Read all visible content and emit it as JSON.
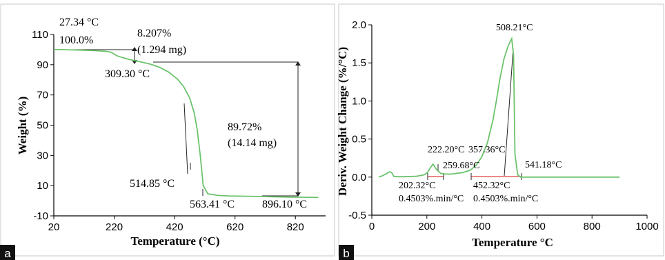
{
  "chart_data": [
    {
      "panel": "a",
      "type": "line",
      "xlabel": "Temperature (°C)",
      "ylabel": "Weight (%)",
      "xlim": [
        20,
        920
      ],
      "ylim": [
        -10,
        110
      ],
      "xticks": [
        20,
        220,
        420,
        620,
        820
      ],
      "yticks": [
        -10,
        10,
        30,
        50,
        70,
        90,
        110
      ],
      "x_tick_labels": [
        "20",
        "220",
        "420",
        "620",
        "820"
      ],
      "y_tick_labels": [
        "-10",
        "10",
        "30",
        "50",
        "70",
        "90",
        "110"
      ],
      "series": [
        {
          "color": "#6cc36c",
          "x": [
            20,
            40,
            80,
            120,
            160,
            190,
            210,
            230,
            250,
            270,
            290,
            309.3,
            340,
            370,
            400,
            430,
            450,
            470,
            485,
            495,
            505,
            514.85,
            530,
            563.41,
            600,
            650,
            700,
            750,
            800,
            850,
            896.1
          ],
          "y": [
            100.0,
            100.0,
            99.8,
            99.6,
            99.3,
            98.9,
            98.2,
            95.8,
            94.6,
            93.5,
            92.6,
            91.8,
            90.4,
            88.3,
            85.2,
            80.4,
            75.5,
            68.0,
            58.0,
            47.0,
            30.0,
            10.0,
            4.6,
            3.5,
            3.2,
            3.0,
            2.8,
            2.6,
            2.4,
            2.3,
            2.2
          ]
        }
      ],
      "annotations": [
        {
          "text": "27.34 °C",
          "x": 27.34,
          "y": 100.0
        },
        {
          "text": "100.0%"
        },
        {
          "text": "8.207%"
        },
        {
          "text": "(1.294 mg)"
        },
        {
          "text": "309.30 °C",
          "x": 309.3,
          "y": 91.8
        },
        {
          "text": "89.72%"
        },
        {
          "text": "(14.14 mg)"
        },
        {
          "text": "514.85 °C",
          "x": 514.85,
          "y": 10.0
        },
        {
          "text": "563.41 °C",
          "x": 563.41,
          "y": 3.5
        },
        {
          "text": "896.10 °C",
          "x": 896.1,
          "y": 2.2
        }
      ],
      "step_arrows": [
        {
          "x": 309.3,
          "y_top": 100.0,
          "y_bottom": 91.8
        },
        {
          "x": 896.1,
          "y_top": 91.8,
          "y_bottom": 2.2
        }
      ],
      "panel_tag": "a"
    },
    {
      "panel": "b",
      "type": "line",
      "xlabel": "Temperature °C",
      "ylabel": "Deriv. Weight Change (%/°C)",
      "xlim": [
        0,
        1000
      ],
      "ylim": [
        -0.5,
        2.0
      ],
      "xticks": [
        0,
        200,
        400,
        600,
        800,
        1000
      ],
      "yticks": [
        -0.5,
        0.0,
        0.5,
        1.0,
        1.5,
        2.0
      ],
      "x_tick_labels": [
        "0",
        "200",
        "400",
        "600",
        "800",
        "1000"
      ],
      "y_tick_labels": [
        "-0.5",
        "0.0",
        "0.5",
        "1.0",
        "1.5",
        "2.0"
      ],
      "series": [
        {
          "color": "#6cc36c",
          "x": [
            25,
            40,
            55,
            65,
            72,
            80,
            90,
            120,
            160,
            190,
            202.32,
            212,
            222.2,
            235,
            250,
            259.68,
            290,
            330,
            357.36,
            380,
            400,
            420,
            440,
            452.32,
            465,
            480,
            495,
            508.21,
            515,
            520,
            530,
            541.18,
            560,
            600,
            650,
            700,
            750,
            800,
            850,
            900
          ],
          "y": [
            0.0,
            0.02,
            0.05,
            0.07,
            0.06,
            0.01,
            0.005,
            0.005,
            0.01,
            0.03,
            0.06,
            0.12,
            0.17,
            0.1,
            0.05,
            0.04,
            0.04,
            0.06,
            0.09,
            0.16,
            0.27,
            0.45,
            0.75,
            1.0,
            1.28,
            1.55,
            1.72,
            1.82,
            1.6,
            0.3,
            0.03,
            0.0,
            0.0,
            0.0,
            0.0,
            0.0,
            0.0,
            0.0,
            0.0,
            0.0
          ]
        }
      ],
      "annotations": [
        {
          "text": "508.21°C",
          "x": 508.21,
          "y": 1.82
        },
        {
          "text": "222.20°C",
          "x": 222.2,
          "y": 0.17
        },
        {
          "text": "357.36°C",
          "x": 357.36,
          "y": 0.09
        },
        {
          "text": "259.68°C",
          "x": 259.68,
          "y": 0.04
        },
        {
          "text": "541.18°C",
          "x": 541.18,
          "y": 0.0
        },
        {
          "text": "202.32°C",
          "x": 202.32
        },
        {
          "text": "0.4503%.min/°C"
        },
        {
          "text": "452.32°C",
          "x": 452.32
        },
        {
          "text": "0.4503%.min/°C"
        }
      ],
      "peak_baselines": [
        {
          "x": [
            202.32,
            259.68
          ],
          "y": [
            0.0,
            0.0
          ]
        },
        {
          "x": [
            357.36,
            541.18
          ],
          "y": [
            0.0,
            0.0
          ]
        }
      ],
      "panel_tag": "b"
    }
  ]
}
